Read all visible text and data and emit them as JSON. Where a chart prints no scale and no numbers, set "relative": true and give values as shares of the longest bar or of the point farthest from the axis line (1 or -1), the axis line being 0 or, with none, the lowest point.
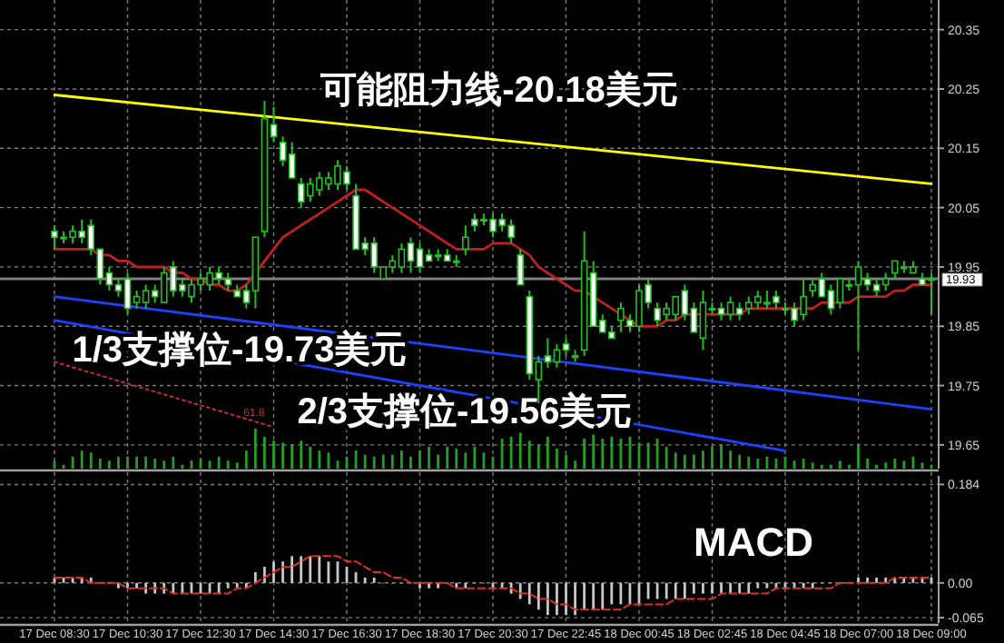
{
  "chart_data": [
    {
      "type": "candlestick",
      "color": "#22c022",
      "ylim": [
        19.61,
        20.4
      ],
      "yticks": [
        20.35,
        20.25,
        20.15,
        20.05,
        19.95,
        19.85,
        19.75,
        19.65
      ],
      "grid": "y",
      "tick_labels": "y",
      "categories": [
        null,
        null,
        null,
        null,
        null,
        null,
        null,
        null,
        null,
        null,
        null,
        null,
        null,
        null,
        null,
        null,
        null,
        null,
        null,
        null,
        null,
        null,
        null,
        null,
        null,
        null,
        null,
        null,
        null,
        null,
        null,
        null,
        null,
        null,
        null,
        null,
        null,
        null,
        null,
        null,
        null,
        null,
        null,
        null,
        null,
        null,
        null,
        null,
        null,
        null,
        null,
        null,
        null,
        null,
        null,
        null,
        null,
        null,
        null,
        null,
        null,
        null,
        null,
        null,
        null,
        null,
        null,
        null,
        null,
        null,
        null,
        null,
        null,
        null,
        null,
        null,
        null,
        null,
        null,
        null,
        null,
        null,
        null,
        null,
        null,
        null,
        null,
        null,
        null,
        null,
        null,
        null,
        null,
        null,
        null,
        null,
        null
      ],
      "ohlc": [
        [
          20.01,
          20.02,
          19.98,
          20.0
        ],
        [
          20.0,
          20.01,
          19.99,
          20.0
        ],
        [
          20.0,
          20.02,
          19.99,
          20.01
        ],
        [
          20.01,
          20.03,
          19.99,
          20.0
        ],
        [
          20.02,
          20.03,
          19.97,
          19.98
        ],
        [
          19.98,
          19.98,
          19.92,
          19.93
        ],
        [
          19.94,
          19.95,
          19.91,
          19.92
        ],
        [
          19.92,
          19.93,
          19.9,
          19.91
        ],
        [
          19.93,
          19.94,
          19.87,
          19.88
        ],
        [
          19.89,
          19.91,
          19.88,
          19.9
        ],
        [
          19.89,
          19.92,
          19.88,
          19.91
        ],
        [
          19.91,
          19.92,
          19.89,
          19.9
        ],
        [
          19.89,
          19.95,
          19.89,
          19.94
        ],
        [
          19.95,
          19.96,
          19.9,
          19.91
        ],
        [
          19.92,
          19.93,
          19.9,
          19.91
        ],
        [
          19.9,
          19.93,
          19.89,
          19.92
        ],
        [
          19.92,
          19.94,
          19.91,
          19.93
        ],
        [
          19.92,
          19.95,
          19.91,
          19.94
        ],
        [
          19.94,
          19.95,
          19.92,
          19.93
        ],
        [
          19.93,
          19.94,
          19.91,
          19.92
        ],
        [
          19.91,
          19.92,
          19.9,
          19.9
        ],
        [
          19.91,
          19.92,
          19.88,
          19.89
        ],
        [
          19.91,
          20.0,
          19.88,
          20.0
        ],
        [
          20.01,
          20.23,
          20.0,
          20.2
        ],
        [
          20.19,
          20.22,
          20.16,
          20.17
        ],
        [
          20.16,
          20.17,
          20.12,
          20.13
        ],
        [
          20.14,
          20.16,
          20.1,
          20.1
        ],
        [
          20.09,
          20.1,
          20.05,
          20.06
        ],
        [
          20.07,
          20.1,
          20.06,
          20.09
        ],
        [
          20.08,
          20.11,
          20.07,
          20.1
        ],
        [
          20.09,
          20.11,
          20.08,
          20.1
        ],
        [
          20.09,
          20.13,
          20.08,
          20.12
        ],
        [
          20.11,
          20.12,
          20.08,
          20.09
        ],
        [
          20.07,
          20.09,
          19.98,
          19.98
        ],
        [
          19.99,
          20.0,
          19.97,
          19.98
        ],
        [
          19.99,
          20.0,
          19.94,
          19.95
        ],
        [
          19.93,
          19.95,
          19.93,
          19.95
        ],
        [
          19.95,
          19.97,
          19.94,
          19.96
        ],
        [
          19.95,
          19.99,
          19.94,
          19.98
        ],
        [
          19.99,
          20.0,
          19.94,
          19.96
        ],
        [
          19.98,
          19.99,
          19.94,
          19.95
        ],
        [
          19.97,
          19.98,
          19.96,
          19.96
        ],
        [
          19.97,
          19.98,
          19.96,
          19.97
        ],
        [
          19.97,
          19.98,
          19.96,
          19.96
        ],
        [
          19.96,
          19.97,
          19.95,
          19.96
        ],
        [
          19.98,
          20.02,
          19.97,
          20.0
        ],
        [
          20.03,
          20.04,
          20.01,
          20.02
        ],
        [
          20.03,
          20.04,
          20.02,
          20.03
        ],
        [
          20.03,
          20.04,
          20.0,
          20.01
        ],
        [
          20.03,
          20.04,
          20.01,
          20.02
        ],
        [
          20.02,
          20.03,
          19.99,
          20.0
        ],
        [
          19.97,
          19.98,
          19.92,
          19.92
        ],
        [
          19.9,
          19.91,
          19.76,
          19.77
        ],
        [
          19.76,
          19.8,
          19.72,
          19.79
        ],
        [
          19.8,
          19.83,
          19.78,
          19.79
        ],
        [
          19.79,
          19.82,
          19.78,
          19.81
        ],
        [
          19.82,
          19.83,
          19.8,
          19.81
        ],
        [
          19.8,
          19.81,
          19.79,
          19.8
        ],
        [
          19.81,
          20.01,
          19.8,
          19.96
        ],
        [
          19.94,
          19.96,
          19.85,
          19.85
        ],
        [
          19.86,
          19.87,
          19.84,
          19.84
        ],
        [
          19.84,
          19.85,
          19.83,
          19.83
        ],
        [
          19.86,
          19.89,
          19.84,
          19.88
        ],
        [
          19.86,
          19.87,
          19.84,
          19.85
        ],
        [
          19.85,
          19.92,
          19.84,
          19.91
        ],
        [
          19.92,
          19.93,
          19.88,
          19.89
        ],
        [
          19.88,
          19.89,
          19.85,
          19.86
        ],
        [
          19.87,
          19.89,
          19.86,
          19.88
        ],
        [
          19.87,
          19.9,
          19.86,
          19.9
        ],
        [
          19.91,
          19.92,
          19.86,
          19.87
        ],
        [
          19.88,
          19.89,
          19.84,
          19.84
        ],
        [
          19.83,
          19.91,
          19.81,
          19.89
        ],
        [
          19.88,
          19.89,
          19.87,
          19.88
        ],
        [
          19.88,
          19.89,
          19.86,
          19.87
        ],
        [
          19.87,
          19.9,
          19.86,
          19.89
        ],
        [
          19.88,
          19.89,
          19.86,
          19.87
        ],
        [
          19.88,
          19.9,
          19.87,
          19.89
        ],
        [
          19.89,
          19.91,
          19.88,
          19.9
        ],
        [
          19.89,
          19.91,
          19.88,
          19.89
        ],
        [
          19.9,
          19.91,
          19.88,
          19.89
        ],
        [
          19.88,
          19.89,
          19.87,
          19.88
        ],
        [
          19.88,
          19.89,
          19.85,
          19.86
        ],
        [
          19.87,
          19.93,
          19.86,
          19.9
        ],
        [
          19.91,
          19.93,
          19.9,
          19.92
        ],
        [
          19.93,
          19.94,
          19.9,
          19.9
        ],
        [
          19.91,
          19.92,
          19.87,
          19.88
        ],
        [
          19.89,
          19.93,
          19.88,
          19.93
        ],
        [
          19.92,
          19.93,
          19.91,
          19.92
        ],
        [
          19.92,
          19.96,
          19.81,
          19.95
        ],
        [
          19.93,
          19.94,
          19.91,
          19.92
        ],
        [
          19.92,
          19.93,
          19.9,
          19.91
        ],
        [
          19.92,
          19.94,
          19.91,
          19.93
        ],
        [
          19.94,
          19.96,
          19.93,
          19.96
        ],
        [
          19.95,
          19.96,
          19.94,
          19.95
        ],
        [
          19.94,
          19.96,
          19.94,
          19.95
        ],
        [
          19.93,
          19.94,
          19.92,
          19.92
        ],
        [
          19.93,
          19.94,
          19.87,
          19.93
        ]
      ],
      "series": [
        {
          "type": "line",
          "color": "#c02020",
          "values": [
            19.98,
            19.98,
            19.98,
            19.98,
            19.98,
            19.97,
            19.97,
            19.96,
            19.96,
            19.95,
            19.95,
            19.95,
            19.95,
            19.94,
            19.94,
            19.93,
            19.93,
            19.92,
            19.92,
            19.91,
            19.91,
            19.92,
            19.94,
            19.96,
            19.98,
            20.0,
            20.01,
            20.02,
            20.03,
            20.04,
            20.05,
            20.06,
            20.07,
            20.08,
            20.08,
            20.07,
            20.06,
            20.05,
            20.04,
            20.03,
            20.02,
            20.01,
            20.0,
            19.99,
            19.98,
            19.98,
            19.98,
            19.98,
            19.99,
            19.99,
            19.99,
            19.98,
            19.97,
            19.95,
            19.94,
            19.93,
            19.92,
            19.91,
            19.91,
            19.9,
            19.89,
            19.88,
            19.87,
            19.86,
            19.85,
            19.85,
            19.85,
            19.86,
            19.86,
            19.87,
            19.87,
            19.87,
            19.87,
            19.87,
            19.87,
            19.87,
            19.88,
            19.88,
            19.88,
            19.88,
            19.88,
            19.88,
            19.88,
            19.88,
            19.89,
            19.89,
            19.89,
            19.89,
            19.9,
            19.9,
            19.9,
            19.9,
            19.91,
            19.91,
            19.92,
            19.92,
            19.92
          ]
        },
        {
          "type": "line",
          "name": "可能阻力线-20.18美元",
          "color": "#ffff00",
          "values": [
            20.24,
            null,
            null,
            null,
            null,
            null,
            null,
            null,
            null,
            null,
            null,
            null,
            null,
            null,
            null,
            null,
            null,
            null,
            null,
            null,
            null,
            null,
            null,
            null,
            null,
            null,
            null,
            null,
            null,
            null,
            null,
            null,
            null,
            null,
            null,
            null,
            null,
            null,
            null,
            null,
            null,
            null,
            null,
            null,
            null,
            null,
            null,
            null,
            null,
            null,
            null,
            null,
            null,
            null,
            null,
            null,
            null,
            null,
            null,
            null,
            null,
            null,
            null,
            null,
            null,
            null,
            null,
            null,
            null,
            null,
            null,
            null,
            null,
            null,
            null,
            null,
            null,
            null,
            null,
            null,
            null,
            null,
            null,
            null,
            null,
            null,
            null,
            null,
            null,
            null,
            null,
            null,
            null,
            null,
            null,
            null,
            20.09
          ]
        },
        {
          "type": "line",
          "name": "1/3支撑位-19.73美元",
          "color": "#1e40ff",
          "values": [
            19.9,
            null,
            null,
            null,
            null,
            null,
            null,
            null,
            null,
            null,
            null,
            null,
            null,
            null,
            null,
            null,
            null,
            null,
            null,
            null,
            null,
            null,
            null,
            null,
            null,
            null,
            null,
            null,
            null,
            null,
            null,
            null,
            null,
            null,
            null,
            null,
            null,
            null,
            null,
            null,
            null,
            null,
            null,
            null,
            null,
            null,
            null,
            null,
            null,
            null,
            null,
            null,
            null,
            null,
            null,
            null,
            null,
            null,
            null,
            null,
            null,
            null,
            null,
            null,
            null,
            null,
            null,
            null,
            null,
            null,
            null,
            null,
            null,
            null,
            null,
            null,
            null,
            null,
            null,
            null,
            null,
            null,
            null,
            null,
            null,
            null,
            null,
            null,
            null,
            null,
            null,
            null,
            null,
            null,
            null,
            null,
            19.71
          ]
        },
        {
          "type": "line",
          "name": "2/3支撑位-19.56美元",
          "color": "#1e40ff",
          "values": [
            19.86,
            null,
            null,
            null,
            null,
            null,
            null,
            null,
            null,
            null,
            null,
            null,
            null,
            null,
            null,
            null,
            null,
            null,
            null,
            null,
            null,
            null,
            null,
            null,
            null,
            null,
            null,
            null,
            null,
            null,
            null,
            null,
            null,
            null,
            null,
            null,
            null,
            null,
            null,
            null,
            null,
            null,
            null,
            null,
            null,
            null,
            null,
            null,
            null,
            null,
            null,
            null,
            null,
            null,
            null,
            null,
            null,
            null,
            null,
            null,
            null,
            null,
            null,
            null,
            null,
            null,
            null,
            null,
            null,
            null,
            null,
            null,
            null,
            null,
            null,
            null,
            null,
            null,
            null,
            null,
            19.64,
            null,
            null,
            null,
            null,
            null,
            null,
            null,
            null,
            null,
            null,
            null,
            null,
            null,
            null,
            null,
            null
          ]
        },
        {
          "type": "line",
          "name": "61.8",
          "color": "#c03030",
          "line_style": "dotted",
          "values": [
            19.79,
            null,
            null,
            null,
            null,
            null,
            null,
            null,
            null,
            null,
            null,
            null,
            null,
            null,
            null,
            null,
            null,
            null,
            null,
            null,
            null,
            null,
            null,
            null,
            19.68,
            null,
            null,
            null,
            null,
            null,
            null,
            null,
            null,
            null,
            null,
            null,
            null,
            null,
            null,
            null,
            null,
            null,
            null,
            null,
            null,
            null,
            null,
            null,
            null,
            null,
            null,
            null,
            null,
            null,
            null,
            null,
            null,
            null,
            null,
            null,
            null,
            null,
            null,
            null,
            null,
            null,
            null,
            null,
            null,
            null,
            null,
            null,
            null,
            null,
            null,
            null,
            null,
            null,
            null,
            null,
            null,
            null,
            null,
            null,
            null,
            null,
            null,
            null,
            null,
            null,
            null,
            null,
            null,
            null,
            null,
            null,
            null
          ]
        }
      ],
      "ref_lines": [
        {
          "axis": "y",
          "value": 19.93,
          "label": "19.93",
          "color": "#808080"
        }
      ]
    },
    {
      "type": "bar",
      "relative": true,
      "tick_labels": false,
      "color": "#22a022",
      "categories": [
        null,
        null,
        null,
        null,
        null,
        null,
        null,
        null,
        null,
        null,
        null,
        null,
        null,
        null,
        null,
        null,
        null,
        null,
        null,
        null,
        null,
        null,
        null,
        null,
        null,
        null,
        null,
        null,
        null,
        null,
        null,
        null,
        null,
        null,
        null,
        null,
        null,
        null,
        null,
        null,
        null,
        null,
        null,
        null,
        null,
        null,
        null,
        null,
        null,
        null,
        null,
        null,
        null,
        null,
        null,
        null,
        null,
        null,
        null,
        null,
        null,
        null,
        null,
        null,
        null,
        null,
        null,
        null,
        null,
        null,
        null,
        null,
        null,
        null,
        null,
        null,
        null,
        null,
        null,
        null,
        null,
        null,
        null,
        null,
        null,
        null,
        null,
        null,
        null,
        null,
        null,
        null,
        null,
        null,
        null,
        null,
        null
      ],
      "values": [
        0.2,
        0.1,
        0.3,
        0.45,
        0.4,
        0.25,
        0.2,
        0.3,
        0.3,
        0.3,
        0.3,
        0.25,
        0.2,
        0.3,
        0.1,
        0.2,
        0.25,
        0.2,
        0.3,
        0.2,
        0.15,
        0.45,
        1.0,
        0.8,
        0.7,
        0.65,
        0.6,
        0.7,
        0.55,
        0.45,
        0.4,
        0.2,
        0.3,
        0.45,
        0.35,
        0.3,
        0.35,
        0.35,
        0.45,
        0.3,
        0.45,
        0.55,
        0.35,
        0.55,
        0.5,
        0.4,
        0.55,
        0.4,
        0.3,
        0.75,
        0.8,
        0.9,
        0.7,
        0.6,
        0.8,
        0.5,
        0.35,
        0.2,
        0.75,
        0.85,
        0.75,
        0.8,
        0.75,
        0.8,
        0.65,
        0.65,
        0.75,
        0.55,
        0.4,
        0.35,
        0.35,
        0.45,
        0.55,
        0.6,
        0.45,
        0.35,
        0.3,
        0.25,
        0.3,
        0.25,
        0.3,
        0.2,
        0.25,
        0.15,
        0.1,
        0.1,
        0.2,
        0.1,
        0.6,
        0.25,
        0.1,
        0.15,
        0.25,
        0.2,
        0.3,
        0.15,
        0.1
      ]
    },
    {
      "type": "bar",
      "title": "MACD",
      "grid": true,
      "ylim": [
        -0.075,
        0.2
      ],
      "yticks": [
        {
          "value": 0.184,
          "label": "0.184"
        },
        {
          "value": 0,
          "label": "0.00"
        },
        {
          "value": -0.065,
          "label": "-0.065"
        }
      ],
      "categories": [
        "17 Dec 08:30",
        null,
        null,
        null,
        null,
        null,
        null,
        null,
        "17 Dec 10:30",
        null,
        null,
        null,
        null,
        null,
        null,
        null,
        "17 Dec 12:30",
        null,
        null,
        null,
        null,
        null,
        null,
        null,
        "17 Dec 14:30",
        null,
        null,
        null,
        null,
        null,
        null,
        null,
        "17 Dec 16:30",
        null,
        null,
        null,
        null,
        null,
        null,
        null,
        "17 Dec 18:30",
        null,
        null,
        null,
        null,
        null,
        null,
        null,
        "17 Dec 20:30",
        null,
        null,
        null,
        null,
        null,
        null,
        null,
        "17 Dec 22:45",
        null,
        null,
        null,
        null,
        null,
        null,
        null,
        "18 Dec 00:45",
        null,
        null,
        null,
        null,
        null,
        null,
        null,
        "18 Dec 02:45",
        null,
        null,
        null,
        null,
        null,
        null,
        null,
        "18 Dec 04:45",
        null,
        null,
        null,
        null,
        null,
        null,
        null,
        "18 Dec 07:00",
        null,
        null,
        null,
        null,
        null,
        null,
        null,
        "18 Dec 09:00"
      ],
      "series": [
        {
          "color": "#c8c8c8",
          "values": [
            0.01,
            0.01,
            0.01,
            0.01,
            0.01,
            0.0,
            0.0,
            -0.01,
            -0.01,
            -0.01,
            -0.02,
            -0.02,
            -0.02,
            -0.02,
            -0.02,
            -0.02,
            -0.02,
            -0.02,
            -0.02,
            -0.01,
            -0.01,
            -0.01,
            0.02,
            0.03,
            0.04,
            0.04,
            0.05,
            0.05,
            0.05,
            0.05,
            0.04,
            0.04,
            0.03,
            0.02,
            0.01,
            0.01,
            0.0,
            0.0,
            0.0,
            0.0,
            -0.01,
            -0.01,
            -0.01,
            0.0,
            -0.01,
            -0.01,
            0.0,
            0.0,
            -0.01,
            -0.01,
            -0.02,
            -0.03,
            -0.04,
            -0.05,
            -0.06,
            -0.06,
            -0.06,
            -0.06,
            -0.05,
            -0.05,
            -0.05,
            -0.04,
            -0.04,
            -0.04,
            -0.04,
            -0.03,
            -0.03,
            -0.03,
            -0.03,
            -0.03,
            -0.02,
            -0.02,
            -0.02,
            -0.02,
            -0.02,
            -0.02,
            -0.02,
            -0.01,
            -0.01,
            -0.01,
            -0.01,
            -0.01,
            -0.01,
            -0.01,
            0.0,
            0.0,
            0.0,
            0.0,
            0.01,
            0.01,
            0.01,
            0.01,
            0.01,
            0.01,
            0.01,
            0.01,
            0.01
          ]
        },
        {
          "type": "line",
          "color": "#e03020",
          "line_style": "dashed",
          "values": [
            0.01,
            0.01,
            0.01,
            0.01,
            0.0,
            0.0,
            0.0,
            0.0,
            -0.01,
            -0.01,
            -0.01,
            -0.01,
            -0.01,
            -0.02,
            -0.02,
            -0.02,
            -0.02,
            -0.02,
            -0.02,
            -0.02,
            -0.01,
            -0.01,
            0.0,
            0.01,
            0.02,
            0.03,
            0.03,
            0.04,
            0.05,
            0.05,
            0.05,
            0.05,
            0.04,
            0.04,
            0.03,
            0.02,
            0.02,
            0.01,
            0.01,
            0.0,
            0.0,
            0.0,
            0.0,
            0.0,
            -0.01,
            -0.01,
            -0.01,
            -0.01,
            -0.01,
            -0.01,
            -0.01,
            -0.02,
            -0.02,
            -0.03,
            -0.03,
            -0.04,
            -0.04,
            -0.05,
            -0.05,
            -0.05,
            -0.05,
            -0.05,
            -0.05,
            -0.04,
            -0.04,
            -0.04,
            -0.04,
            -0.04,
            -0.03,
            -0.03,
            -0.03,
            -0.03,
            -0.03,
            -0.02,
            -0.02,
            -0.02,
            -0.02,
            -0.02,
            -0.02,
            -0.01,
            -0.01,
            -0.01,
            -0.01,
            -0.01,
            -0.01,
            -0.01,
            0.0,
            0.0,
            0.0,
            0.0,
            0.0,
            0.0,
            0.01,
            0.01,
            0.01,
            0.01,
            0.01
          ]
        }
      ]
    }
  ]
}
